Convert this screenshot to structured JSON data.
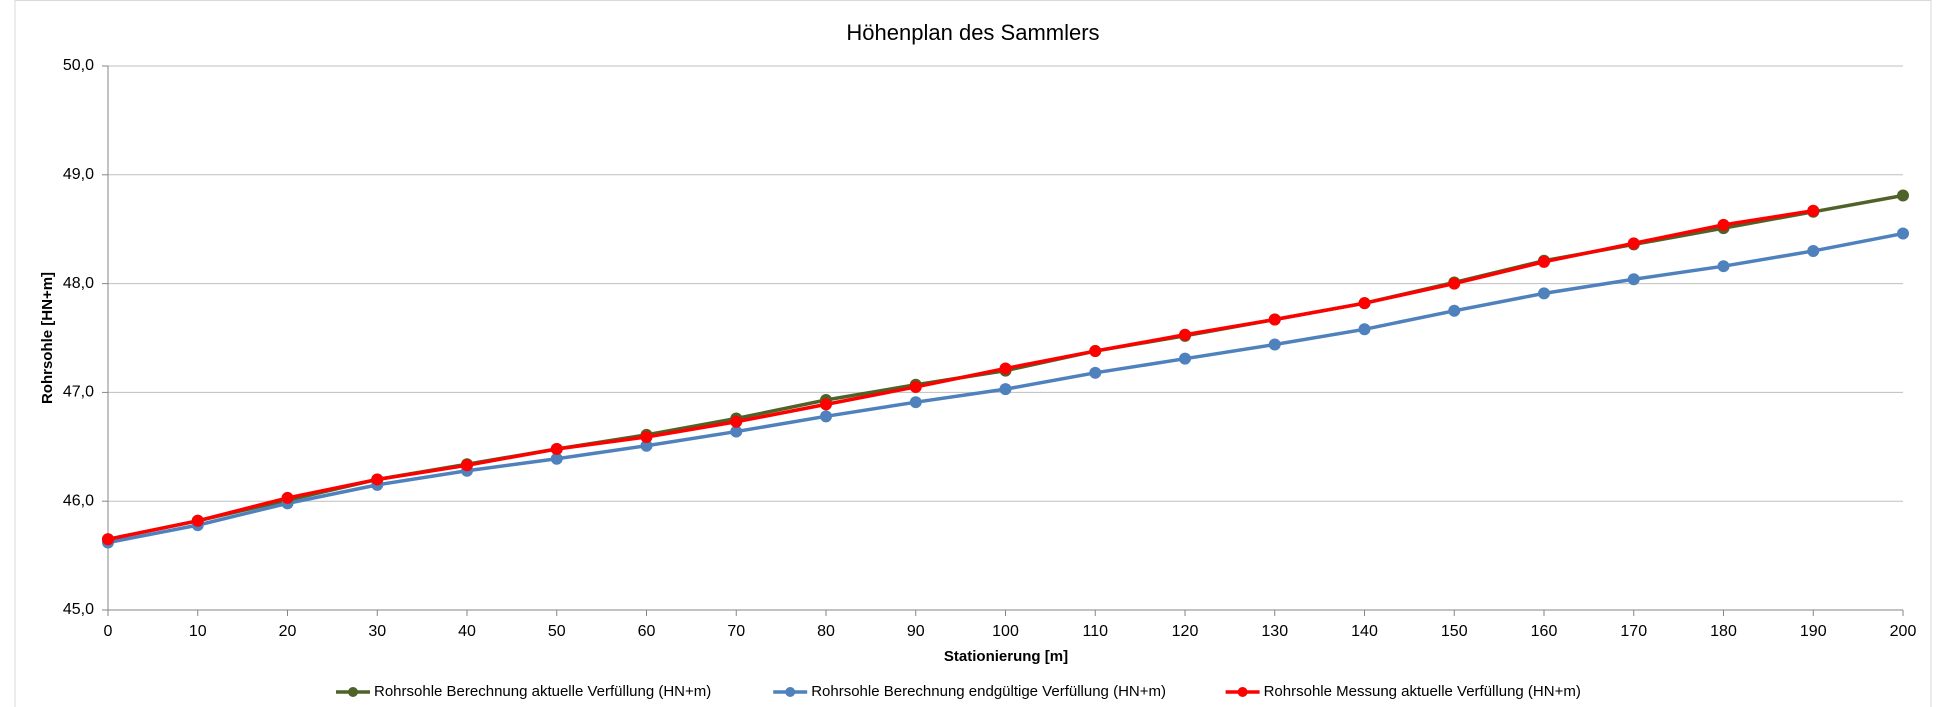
{
  "chart_data": {
    "type": "line",
    "title": "Höhenplan des Sammlers",
    "x_label": "Stationierung [m]",
    "y_label": "Rohrsohle [HN+m]",
    "x": [
      0,
      10,
      20,
      30,
      40,
      50,
      60,
      70,
      80,
      90,
      100,
      110,
      120,
      130,
      140,
      150,
      160,
      170,
      180,
      190,
      200
    ],
    "series": [
      {
        "name": "Rohrsohle Berechnung aktuelle Verfüllung (HN+m)",
        "color": "#4f6228",
        "values": [
          45.65,
          45.82,
          46.01,
          46.2,
          46.34,
          46.48,
          46.61,
          46.76,
          46.93,
          47.07,
          47.2,
          47.38,
          47.52,
          47.67,
          47.82,
          48.01,
          48.21,
          48.36,
          48.51,
          48.66,
          48.81
        ]
      },
      {
        "name": "Rohrsohle Berechnung endgültige Verfüllung (HN+m)",
        "color": "#4f81bd",
        "values": [
          45.62,
          45.78,
          45.98,
          46.15,
          46.28,
          46.39,
          46.51,
          46.64,
          46.78,
          46.91,
          47.03,
          47.18,
          47.31,
          47.44,
          47.58,
          47.75,
          47.91,
          48.04,
          48.16,
          48.3,
          48.46
        ]
      },
      {
        "name": "Rohrsohle Messung aktuelle Verfüllung (HN+m)",
        "color": "#ff0000",
        "values": [
          45.65,
          45.82,
          46.03,
          46.2,
          46.33,
          46.48,
          46.59,
          46.73,
          46.89,
          47.05,
          47.22,
          47.38,
          47.53,
          47.67,
          47.82,
          48.0,
          48.2,
          48.37,
          48.54,
          48.67,
          null
        ]
      }
    ],
    "xlim": [
      0,
      200
    ],
    "xticks": [
      0,
      10,
      20,
      30,
      40,
      50,
      60,
      70,
      80,
      90,
      100,
      110,
      120,
      130,
      140,
      150,
      160,
      170,
      180,
      190,
      200
    ],
    "ylim": [
      45,
      50
    ],
    "yticks": [
      {
        "value": 45,
        "label": "45,0"
      },
      {
        "value": 46,
        "label": "46,0"
      },
      {
        "value": 47,
        "label": "47,0"
      },
      {
        "value": 48,
        "label": "48,0"
      },
      {
        "value": 49,
        "label": "49,0"
      },
      {
        "value": 50,
        "label": "50,0"
      }
    ],
    "grid": true,
    "legend": "bottom"
  }
}
